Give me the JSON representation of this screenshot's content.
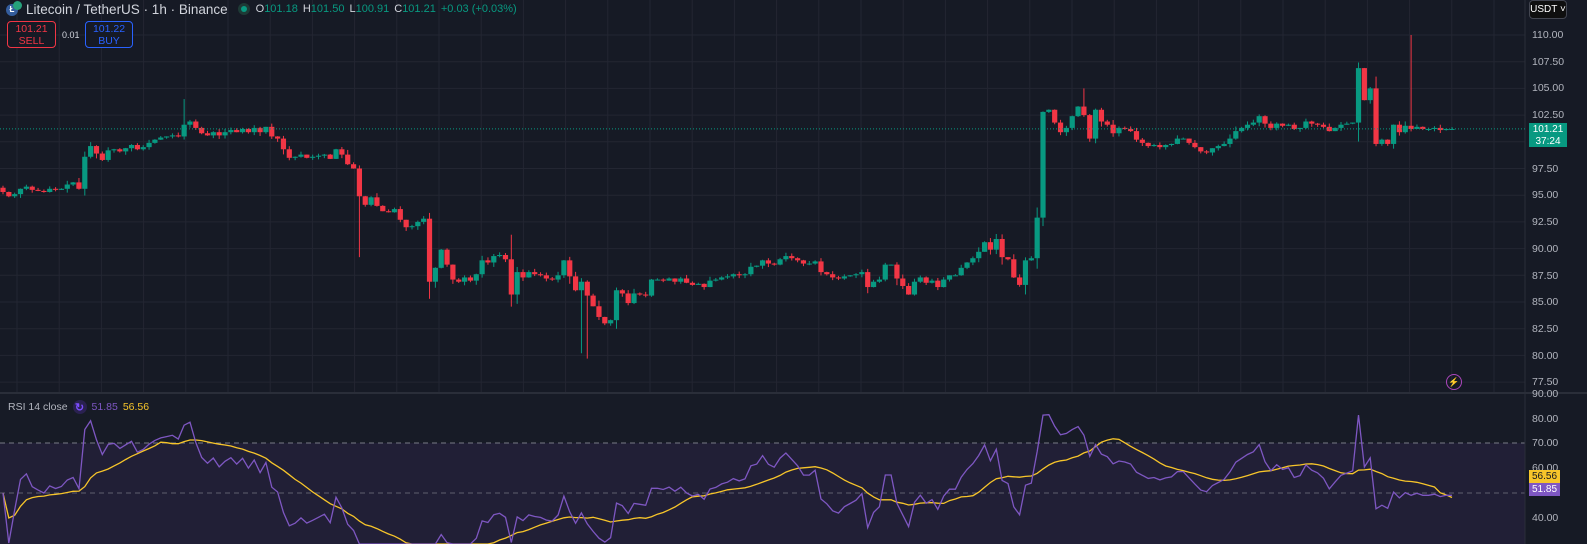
{
  "header": {
    "symbol_title": "Litecoin / TetherUS · 1h · Binance",
    "ohlc": {
      "o_label": "O",
      "o": "101.18",
      "h_label": "H",
      "h": "101.50",
      "l_label": "L",
      "l": "100.91",
      "c_label": "C",
      "c": "101.21",
      "change": "+0.03 (+0.03%)"
    }
  },
  "trade": {
    "sell_price": "101.21",
    "sell_label": "SELL",
    "spread": "0.01",
    "buy_price": "101.22",
    "buy_label": "BUY"
  },
  "currency_selector": {
    "label": "USDT ˅"
  },
  "price_axis": {
    "labels": [
      "110.00",
      "107.50",
      "105.00",
      "102.50",
      "97.50",
      "95.00",
      "92.50",
      "90.00",
      "87.50",
      "85.00",
      "82.50",
      "80.00",
      "77.50"
    ],
    "current_price": "101.21",
    "countdown": "37:24"
  },
  "rsi": {
    "legend_name": "RSI 14 close",
    "value": "51.85",
    "ma_value": "56.56",
    "axis_labels": [
      "90.00",
      "80.00",
      "70.00",
      "60.00",
      "50.00",
      "40.00"
    ]
  },
  "colors": {
    "up": "#089981",
    "down": "#f23645",
    "rsi": "#7e57c2",
    "rsi_ma": "#f7c52a",
    "background": "#161a25",
    "grid": "#232632"
  },
  "chart_data": [
    {
      "type": "candlestick",
      "title": "Litecoin / TetherUS · 1h · Binance",
      "ylim": [
        77.5,
        110.0
      ],
      "yticks": [
        77.5,
        80,
        82.5,
        85,
        87.5,
        90,
        92.5,
        95,
        97.5,
        100,
        102.5,
        105,
        107.5,
        110
      ],
      "last": {
        "open": 101.18,
        "high": 101.5,
        "low": 100.91,
        "close": 101.21,
        "change": 0.03,
        "change_pct": 0.03
      },
      "closes": [
        95.3,
        94.9,
        95.1,
        95.6,
        95.8,
        95.5,
        95.4,
        95.3,
        95.6,
        95.5,
        95.6,
        96.0,
        96.2,
        95.6,
        98.6,
        99.6,
        98.9,
        98.3,
        99.2,
        99.3,
        99.1,
        99.4,
        99.7,
        99.3,
        99.5,
        99.9,
        100.2,
        100.4,
        100.5,
        100.6,
        100.5,
        101.6,
        101.9,
        101.3,
        100.8,
        100.6,
        100.9,
        100.6,
        100.9,
        101.1,
        100.9,
        101.2,
        100.9,
        101.3,
        100.9,
        101.4,
        100.5,
        100.3,
        99.3,
        98.5,
        98.6,
        98.8,
        98.5,
        98.6,
        98.7,
        98.8,
        98.4,
        99.3,
        98.8,
        97.9,
        97.5,
        94.9,
        94.1,
        94.8,
        94.0,
        93.5,
        93.4,
        93.7,
        92.7,
        92.0,
        92.1,
        92.5,
        92.8,
        86.9,
        88.2,
        89.9,
        88.5,
        87.1,
        86.9,
        87.3,
        87.0,
        87.6,
        88.9,
        88.7,
        89.3,
        89.4,
        89.0,
        85.7,
        87.8,
        87.3,
        87.8,
        87.6,
        87.5,
        87.2,
        87.1,
        87.5,
        88.9,
        87.4,
        86.1,
        86.9,
        85.6,
        84.6,
        83.6,
        83.0,
        83.3,
        86.1,
        85.8,
        84.9,
        85.8,
        85.7,
        85.6,
        87.1,
        87.1,
        87.0,
        87.2,
        86.9,
        87.2,
        86.8,
        86.6,
        86.7,
        86.4,
        87.0,
        87.1,
        87.3,
        87.4,
        87.6,
        87.5,
        87.6,
        88.3,
        88.4,
        88.9,
        88.6,
        88.5,
        89.0,
        89.3,
        89.1,
        88.9,
        88.6,
        88.6,
        88.8,
        87.8,
        87.6,
        87.3,
        87.2,
        87.4,
        87.5,
        87.6,
        87.8,
        86.4,
        86.9,
        87.1,
        88.5,
        88.5,
        87.2,
        86.5,
        85.7,
        86.9,
        87.3,
        86.8,
        87.0,
        86.4,
        87.1,
        87.5,
        87.5,
        88.2,
        88.7,
        89.1,
        89.7,
        90.6,
        89.9,
        90.9,
        89.2,
        89.0,
        87.3,
        86.6,
        88.9,
        89.1,
        92.9,
        102.8,
        103.0,
        101.8,
        100.9,
        101.3,
        102.4,
        103.3,
        102.5,
        100.3,
        103.0,
        101.9,
        101.6,
        100.8,
        101.3,
        101.2,
        101.0,
        100.2,
        99.9,
        99.6,
        99.7,
        99.5,
        99.7,
        99.8,
        100.3,
        100.3,
        99.9,
        99.5,
        99.1,
        99.0,
        99.4,
        99.6,
        99.8,
        100.3,
        101.0,
        101.3,
        101.6,
        101.8,
        102.4,
        101.7,
        101.3,
        101.7,
        101.5,
        101.6,
        101.2,
        101.3,
        101.9,
        101.7,
        101.6,
        101.4,
        101.0,
        101.3,
        101.6,
        101.7,
        101.8,
        106.9,
        103.9,
        105.0,
        99.8,
        100.2,
        99.8,
        101.6,
        100.9,
        101.5,
        101.2,
        101.4,
        101.2,
        101.2,
        101.3,
        101.1,
        101.2,
        101.2
      ],
      "rsi": {
        "name": "RSI 14 close",
        "last": 51.85,
        "ma_last": 56.56,
        "levels": [
          70,
          50
        ],
        "ylim": [
          35,
          90
        ]
      }
    }
  ]
}
